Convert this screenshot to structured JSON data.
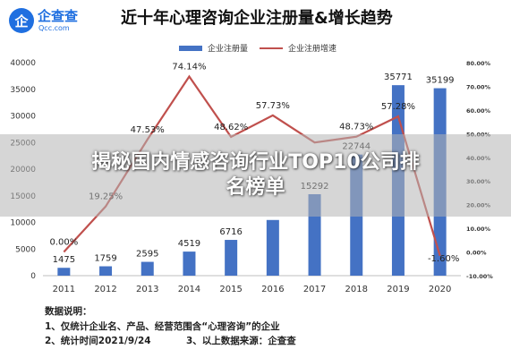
{
  "logo": {
    "mark": "企",
    "name": "企查查",
    "url": "Qcc.com"
  },
  "chart_data": {
    "type": "bar",
    "title": "近十年心理咨询企业注册量&增长趋势",
    "categories": [
      "2011",
      "2012",
      "2013",
      "2014",
      "2015",
      "2016",
      "2017",
      "2018",
      "2019",
      "2020"
    ],
    "series": [
      {
        "name": "企业注册量",
        "type": "bar",
        "axis": "left",
        "values": [
          1475,
          1759,
          2595,
          4519,
          6716,
          10455,
          15292,
          22744,
          35771,
          35199
        ],
        "labels": [
          "1475",
          "1759",
          "2595",
          "4519",
          "6716",
          "",
          "15292",
          "22744",
          "35771",
          "35199"
        ],
        "color": "#4472c4"
      },
      {
        "name": "企业注册增速",
        "type": "line",
        "axis": "right",
        "values": [
          0.0,
          19.25,
          47.53,
          74.14,
          48.62,
          57.73,
          46.27,
          48.73,
          57.28,
          -1.6
        ],
        "labels": [
          "0.00%",
          "19.25%",
          "47.53%",
          "74.14%",
          "48.62%",
          "57.73%",
          "",
          "48.73%",
          "57.28%",
          "-1.60%"
        ],
        "color": "#c0504d"
      }
    ],
    "ylim_left": [
      0,
      40000
    ],
    "yticks_left": [
      "0",
      "5000",
      "10000",
      "15000",
      "20000",
      "25000",
      "30000",
      "35000",
      "40000"
    ],
    "ylim_right": [
      -10,
      80
    ],
    "yticks_right": [
      "-10.00%",
      "0.00%",
      "10.00%",
      "20.00%",
      "30.00%",
      "40.00%",
      "50.00%",
      "60.00%",
      "70.00%",
      "80.00%"
    ],
    "legend_position": "top"
  },
  "notes": {
    "heading": "数据说明：",
    "line1": "1、仅统计企业名、产品、经营范围含“心理咨询”的企业",
    "line2a": "2、统计时间2021/9/24",
    "line2b": "3、以上数据来源：企查查"
  },
  "overlay": {
    "line1": "揭秘国内情感咨询行业TOP10公司排",
    "line2": "名榜单"
  }
}
